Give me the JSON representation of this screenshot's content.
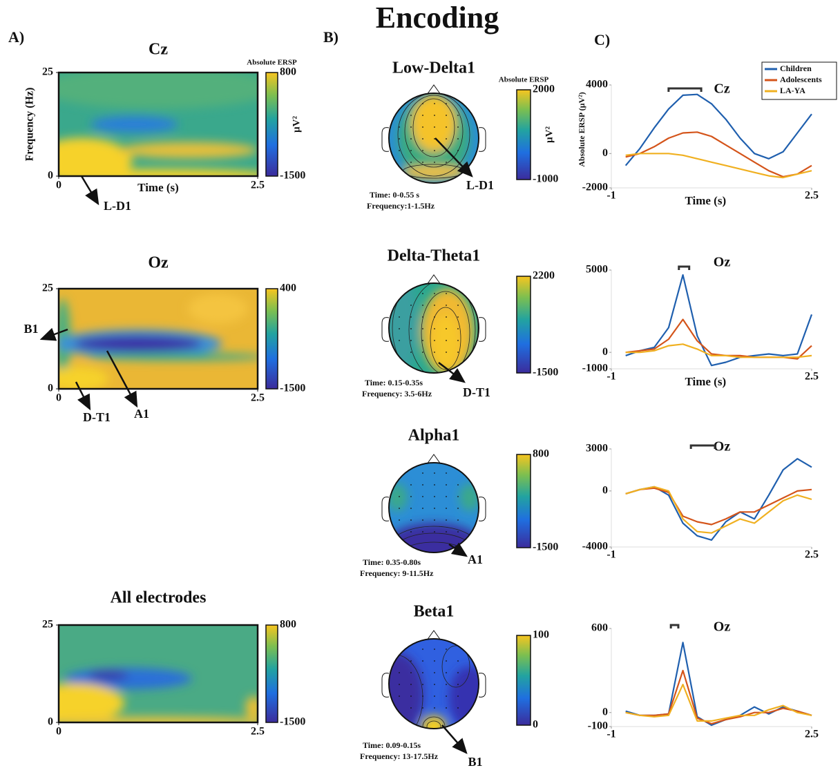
{
  "title": "Encoding",
  "panel_labels": [
    "A)",
    "B)",
    "C)"
  ],
  "chart_data": [
    {
      "type": "heatmap",
      "title": "Cz",
      "xlabel": "Time (s)",
      "ylabel": "Frequency (Hz)",
      "xlim": [
        0,
        2.5
      ],
      "ylim": [
        0,
        25
      ],
      "xticks": [
        0,
        2.5
      ],
      "yticks": [
        0,
        25
      ],
      "colorbar": {
        "title": "Absolute ERSP",
        "label": "µV²",
        "lim": [
          -1500,
          800
        ],
        "ticks": [
          -1500,
          800
        ]
      },
      "annotations": [
        "L-D1"
      ]
    },
    {
      "type": "heatmap",
      "title": "Oz",
      "xlim": [
        0,
        2.5
      ],
      "ylim": [
        0,
        25
      ],
      "xticks": [
        0,
        2.5
      ],
      "yticks": [
        0,
        25
      ],
      "colorbar": {
        "lim": [
          -1500,
          400
        ],
        "ticks": [
          -1500,
          400
        ]
      },
      "annotations": [
        "B1",
        "A1",
        "D-T1"
      ]
    },
    {
      "type": "heatmap",
      "title": "All electrodes",
      "xlim": [
        0,
        2.5
      ],
      "ylim": [
        0,
        25
      ],
      "xticks": [
        0,
        2.5
      ],
      "yticks": [
        0,
        25
      ],
      "colorbar": {
        "lim": [
          -1500,
          800
        ],
        "ticks": [
          -1500,
          800
        ]
      },
      "annotations": []
    },
    {
      "type": "topomap",
      "title": "Low-Delta1",
      "info": [
        "Time: 0-0.55 s",
        "Frequency:1-1.5Hz"
      ],
      "colorbar": {
        "title": "Absolute ERSP",
        "label": "µV²",
        "lim": [
          -1000,
          2000
        ],
        "ticks": [
          -1000,
          2000
        ]
      },
      "annotations": [
        "L-D1"
      ]
    },
    {
      "type": "topomap",
      "title": "Delta-Theta1",
      "info": [
        "Time: 0.15-0.35s",
        "Frequency: 3.5-6Hz"
      ],
      "colorbar": {
        "lim": [
          -1500,
          2200
        ],
        "ticks": [
          -1500,
          2200
        ]
      },
      "annotations": [
        "D-T1"
      ]
    },
    {
      "type": "topomap",
      "title": "Alpha1",
      "info": [
        "Time: 0.35-0.80s",
        "Frequency: 9-11.5Hz"
      ],
      "colorbar": {
        "lim": [
          -1500,
          800
        ],
        "ticks": [
          -1500,
          800
        ]
      },
      "annotations": [
        "A1"
      ]
    },
    {
      "type": "topomap",
      "title": "Beta1",
      "info": [
        "Time: 0.09-0.15s",
        "Frequency: 13-17.5Hz"
      ],
      "colorbar": {
        "lim": [
          0,
          100
        ],
        "ticks": [
          0,
          100
        ]
      },
      "annotations": [
        "B1"
      ]
    },
    {
      "type": "line",
      "title": "Cz",
      "xlabel": "Time (s)",
      "ylabel": "Absolute ERSP (µV²)",
      "legend": "upper right",
      "x": [
        -0.75,
        -0.5,
        -0.25,
        0,
        0.25,
        0.5,
        0.75,
        1,
        1.25,
        1.5,
        1.75,
        2,
        2.25,
        2.5
      ],
      "xlim": [
        -1,
        2.5
      ],
      "xticks": [
        -1,
        2.5
      ],
      "ylim": [
        -2000,
        4000
      ],
      "yticks": [
        -2000,
        0,
        4000
      ],
      "significance": [
        0,
        0.57
      ],
      "series": [
        {
          "name": "Children",
          "color": "#1f5fae",
          "values": [
            -700,
            300,
            1500,
            2600,
            3400,
            3450,
            2900,
            2000,
            900,
            0,
            -300,
            100,
            1200,
            2300
          ]
        },
        {
          "name": "Adolescents",
          "color": "#d4541a",
          "values": [
            -200,
            0,
            400,
            900,
            1200,
            1250,
            1000,
            500,
            0,
            -500,
            -1000,
            -1350,
            -1200,
            -700
          ]
        },
        {
          "name": "LA-YA",
          "color": "#f0b020",
          "values": [
            -100,
            0,
            0,
            0,
            -100,
            -300,
            -500,
            -700,
            -900,
            -1100,
            -1300,
            -1400,
            -1200,
            -1000
          ]
        }
      ]
    },
    {
      "type": "line",
      "title": "Oz",
      "xlabel": "Time (s)",
      "x": [
        -0.75,
        -0.5,
        -0.25,
        0,
        0.25,
        0.5,
        0.75,
        1,
        1.25,
        1.5,
        1.75,
        2,
        2.25,
        2.5
      ],
      "xlim": [
        -1,
        2.5
      ],
      "xticks": [
        -1,
        2.5
      ],
      "ylim": [
        -1000,
        5000
      ],
      "yticks": [
        -1000,
        0,
        5000
      ],
      "significance": [
        0.18,
        0.36
      ],
      "series": [
        {
          "name": "Children",
          "color": "#1f5fae",
          "values": [
            -200,
            100,
            300,
            1500,
            4700,
            1000,
            -800,
            -600,
            -300,
            -200,
            -100,
            -200,
            -100,
            2300
          ]
        },
        {
          "name": "Adolescents",
          "color": "#d4541a",
          "values": [
            0,
            100,
            200,
            800,
            2000,
            700,
            -100,
            -200,
            -200,
            -300,
            -300,
            -300,
            -400,
            400
          ]
        },
        {
          "name": "LA-YA",
          "color": "#f0b020",
          "values": [
            0,
            0,
            100,
            400,
            500,
            200,
            -200,
            -200,
            -300,
            -300,
            -300,
            -300,
            -300,
            -200
          ]
        }
      ]
    },
    {
      "type": "line",
      "title": "Oz",
      "x": [
        -0.75,
        -0.5,
        -0.25,
        0,
        0.25,
        0.5,
        0.75,
        1,
        1.25,
        1.5,
        1.75,
        2,
        2.25,
        2.5
      ],
      "xlim": [
        -1,
        2.5
      ],
      "xticks": [
        -1,
        2.5
      ],
      "ylim": [
        -4000,
        3000
      ],
      "yticks": [
        -4000,
        0,
        3000
      ],
      "significance": [
        0.39,
        0.81
      ],
      "series": [
        {
          "name": "Children",
          "color": "#1f5fae",
          "values": [
            -200,
            100,
            300,
            -300,
            -2300,
            -3200,
            -3500,
            -2200,
            -1500,
            -2000,
            -300,
            1500,
            2300,
            1700
          ]
        },
        {
          "name": "Adolescents",
          "color": "#d4541a",
          "values": [
            -200,
            100,
            200,
            -100,
            -1800,
            -2200,
            -2400,
            -2000,
            -1500,
            -1500,
            -1000,
            -500,
            0,
            100
          ]
        },
        {
          "name": "LA-YA",
          "color": "#f0b020",
          "values": [
            -200,
            100,
            300,
            0,
            -2000,
            -2900,
            -3000,
            -2500,
            -2000,
            -2300,
            -1500,
            -700,
            -300,
            -600
          ]
        }
      ]
    },
    {
      "type": "line",
      "title": "Oz",
      "x": [
        -0.75,
        -0.5,
        -0.25,
        0,
        0.25,
        0.5,
        0.75,
        1,
        1.25,
        1.5,
        1.75,
        2,
        2.25,
        2.5
      ],
      "xlim": [
        -1,
        2.5
      ],
      "xticks": [
        -1,
        2.5
      ],
      "ylim": [
        -100,
        600
      ],
      "yticks": [
        -100,
        0,
        600
      ],
      "significance": [
        0.04,
        0.17
      ],
      "series": [
        {
          "name": "Children",
          "color": "#1f5fae",
          "values": [
            10,
            -20,
            -20,
            -10,
            500,
            -30,
            -90,
            -50,
            -20,
            40,
            -10,
            40,
            10,
            -20
          ]
        },
        {
          "name": "Adolescents",
          "color": "#d4541a",
          "values": [
            0,
            -20,
            -20,
            -10,
            300,
            -40,
            -80,
            -50,
            -30,
            0,
            0,
            30,
            10,
            -20
          ]
        },
        {
          "name": "LA-YA",
          "color": "#f0b020",
          "values": [
            0,
            -20,
            -30,
            -20,
            200,
            -60,
            -60,
            -40,
            -20,
            -20,
            20,
            50,
            0,
            -20
          ]
        }
      ]
    }
  ]
}
